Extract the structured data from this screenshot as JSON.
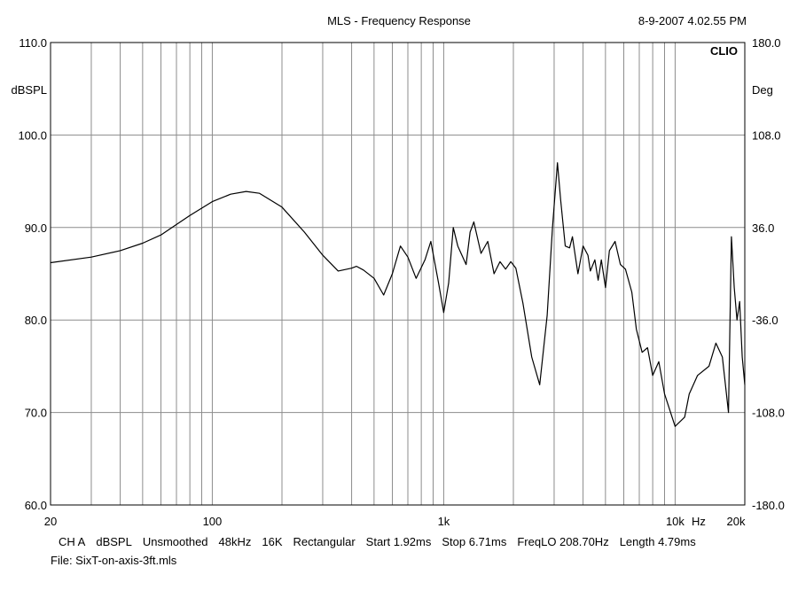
{
  "chart_data": {
    "type": "line",
    "title": "MLS - Frequency Response",
    "timestamp": "8-9-2007 4.02.55 PM",
    "brand": "CLIO",
    "x_scale": "log",
    "xlim": [
      20,
      20000
    ],
    "ylim": [
      60,
      110
    ],
    "y2lim": [
      -180,
      180
    ],
    "ylabel": "dBSPL",
    "y2label": "Deg",
    "xlabel": "Hz",
    "x_tick_labels": [
      "20",
      "100",
      "1k",
      "10k",
      "20k"
    ],
    "y_tick_labels": [
      "60.0",
      "70.0",
      "80.0",
      "90.0",
      "100.0",
      "110.0"
    ],
    "y2_tick_labels": [
      "-180.0",
      "-108.0",
      "-36.0",
      "36.0",
      "108.0",
      "180.0"
    ],
    "grid": true,
    "series": [
      {
        "x": [
          20,
          30,
          40,
          50,
          60,
          80,
          100,
          120,
          140,
          160,
          200,
          250,
          300,
          350,
          400,
          420,
          450,
          500,
          550,
          600,
          650,
          700,
          760,
          830,
          880,
          950,
          1000,
          1050,
          1100,
          1150,
          1250,
          1300,
          1350,
          1450,
          1550,
          1650,
          1750,
          1850,
          1950,
          2050,
          2200,
          2400,
          2600,
          2800,
          2950,
          3100,
          3200,
          3350,
          3500,
          3600,
          3800,
          4000,
          4200,
          4300,
          4500,
          4650,
          4800,
          5000,
          5200,
          5500,
          5800,
          6100,
          6500,
          6800,
          7200,
          7600,
          8000,
          8500,
          9000,
          10000,
          11000,
          11500,
          12500,
          14000,
          15000,
          16000,
          17000,
          17500,
          18000,
          18500,
          19000,
          19500,
          20000
        ],
        "values": [
          86.2,
          86.8,
          87.5,
          88.3,
          89.2,
          91.3,
          92.8,
          93.6,
          93.9,
          93.7,
          92.2,
          89.5,
          87.0,
          85.3,
          85.6,
          85.8,
          85.4,
          84.5,
          82.7,
          85.0,
          88.0,
          86.8,
          84.5,
          86.5,
          88.5,
          84.0,
          80.8,
          84.0,
          90.0,
          88.0,
          86.0,
          89.5,
          90.6,
          87.2,
          88.5,
          85.0,
          86.3,
          85.5,
          86.3,
          85.6,
          81.8,
          76.0,
          73.0,
          80.5,
          90.0,
          97.0,
          93.0,
          88.0,
          87.8,
          89.0,
          85.0,
          88.0,
          87.0,
          85.3,
          86.5,
          84.3,
          86.5,
          83.5,
          87.5,
          88.5,
          86.0,
          85.5,
          83.0,
          79.0,
          76.5,
          77.0,
          74.0,
          75.5,
          72.0,
          68.5,
          69.5,
          72.0,
          74.0,
          75.0,
          77.5,
          76.0,
          70.0,
          89.0,
          83.5,
          80.0,
          82.0,
          76.0,
          73.0
        ]
      }
    ]
  },
  "footer": {
    "settings": [
      "CH A",
      "dBSPL",
      "Unsmoothed",
      "48kHz",
      "16K",
      "Rectangular",
      "Start 1.92ms",
      "Stop 6.71ms",
      "FreqLO 208.70Hz",
      "Length 4.79ms"
    ],
    "file": "File: SixT-on-axis-3ft.mls"
  }
}
